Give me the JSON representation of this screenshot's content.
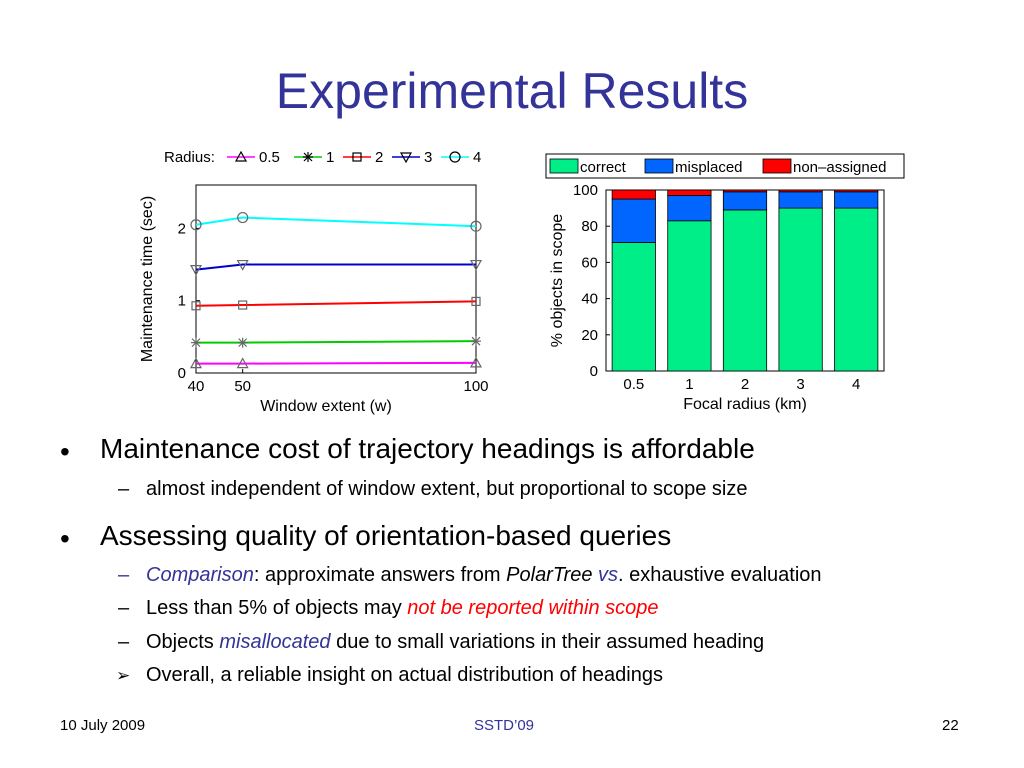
{
  "slide": {
    "title": "Experimental Results",
    "footer": {
      "date": "10 July 2009",
      "venue": "SSTD’09",
      "page": "22"
    }
  },
  "bullets": {
    "b1": {
      "text": "Maintenance cost of trajectory headings is affordable"
    },
    "b1_1": {
      "text": "almost independent of window extent, but proportional to scope size"
    },
    "b2": {
      "text": "Assessing quality of orientation-based queries"
    },
    "b2_1": {
      "p1": "Comparison",
      "p2": ": approximate answers from ",
      "p3": "PolarTree",
      "p4": " vs",
      "p5": ". exhaustive evaluation"
    },
    "b2_2": {
      "p1": "Less than 5% of objects may ",
      "p2": "not be reported within scope"
    },
    "b2_3": {
      "p1": "Objects ",
      "p2": "misallocated",
      "p3": " due to small variations in their assumed heading"
    },
    "b2_4": {
      "text": "Overall, a reliable insight on actual distribution of headings"
    },
    "marker_bullet": "•",
    "marker_dash": "–",
    "marker_arrow": "➢"
  },
  "chart_data": [
    {
      "type": "line",
      "xlabel": "Window extent (w)",
      "ylabel": "Maintenance time (sec)",
      "legend_title": "Radius:",
      "legend_position": "top",
      "x": [
        40,
        50,
        100
      ],
      "xlim": [
        40,
        100
      ],
      "ylim": [
        0,
        2.6
      ],
      "xticks": [
        "40",
        "50",
        "100"
      ],
      "yticks": [
        "0",
        "1",
        "2"
      ],
      "series": [
        {
          "name": "0.5",
          "color": "#ff00ff",
          "marker": "triangle-up",
          "values": [
            0.13,
            0.13,
            0.14
          ]
        },
        {
          "name": "1",
          "color": "#00cc00",
          "marker": "star",
          "values": [
            0.42,
            0.42,
            0.44
          ]
        },
        {
          "name": "2",
          "color": "#ff0000",
          "marker": "square",
          "values": [
            0.93,
            0.94,
            0.99
          ]
        },
        {
          "name": "3",
          "color": "#0000cc",
          "marker": "triangle-down",
          "values": [
            1.43,
            1.5,
            1.5
          ]
        },
        {
          "name": "4",
          "color": "#00ffff",
          "marker": "circle",
          "values": [
            2.05,
            2.15,
            2.03
          ]
        }
      ]
    },
    {
      "type": "bar",
      "stacked": true,
      "xlabel": "Focal radius (km)",
      "ylabel": "% objects in scope",
      "legend_position": "top",
      "categories": [
        "0.5",
        "1",
        "2",
        "3",
        "4"
      ],
      "ylim": [
        0,
        100
      ],
      "yticks": [
        "0",
        "20",
        "40",
        "60",
        "80",
        "100"
      ],
      "series": [
        {
          "name": "correct",
          "color": "#00ee88",
          "values": [
            71,
            83,
            89,
            90,
            90
          ]
        },
        {
          "name": "misplaced",
          "color": "#0066ff",
          "values": [
            24,
            14,
            10,
            9,
            9
          ]
        },
        {
          "name": "non–assigned",
          "color": "#ff0000",
          "values": [
            5,
            3,
            1,
            1,
            1
          ]
        }
      ]
    }
  ]
}
